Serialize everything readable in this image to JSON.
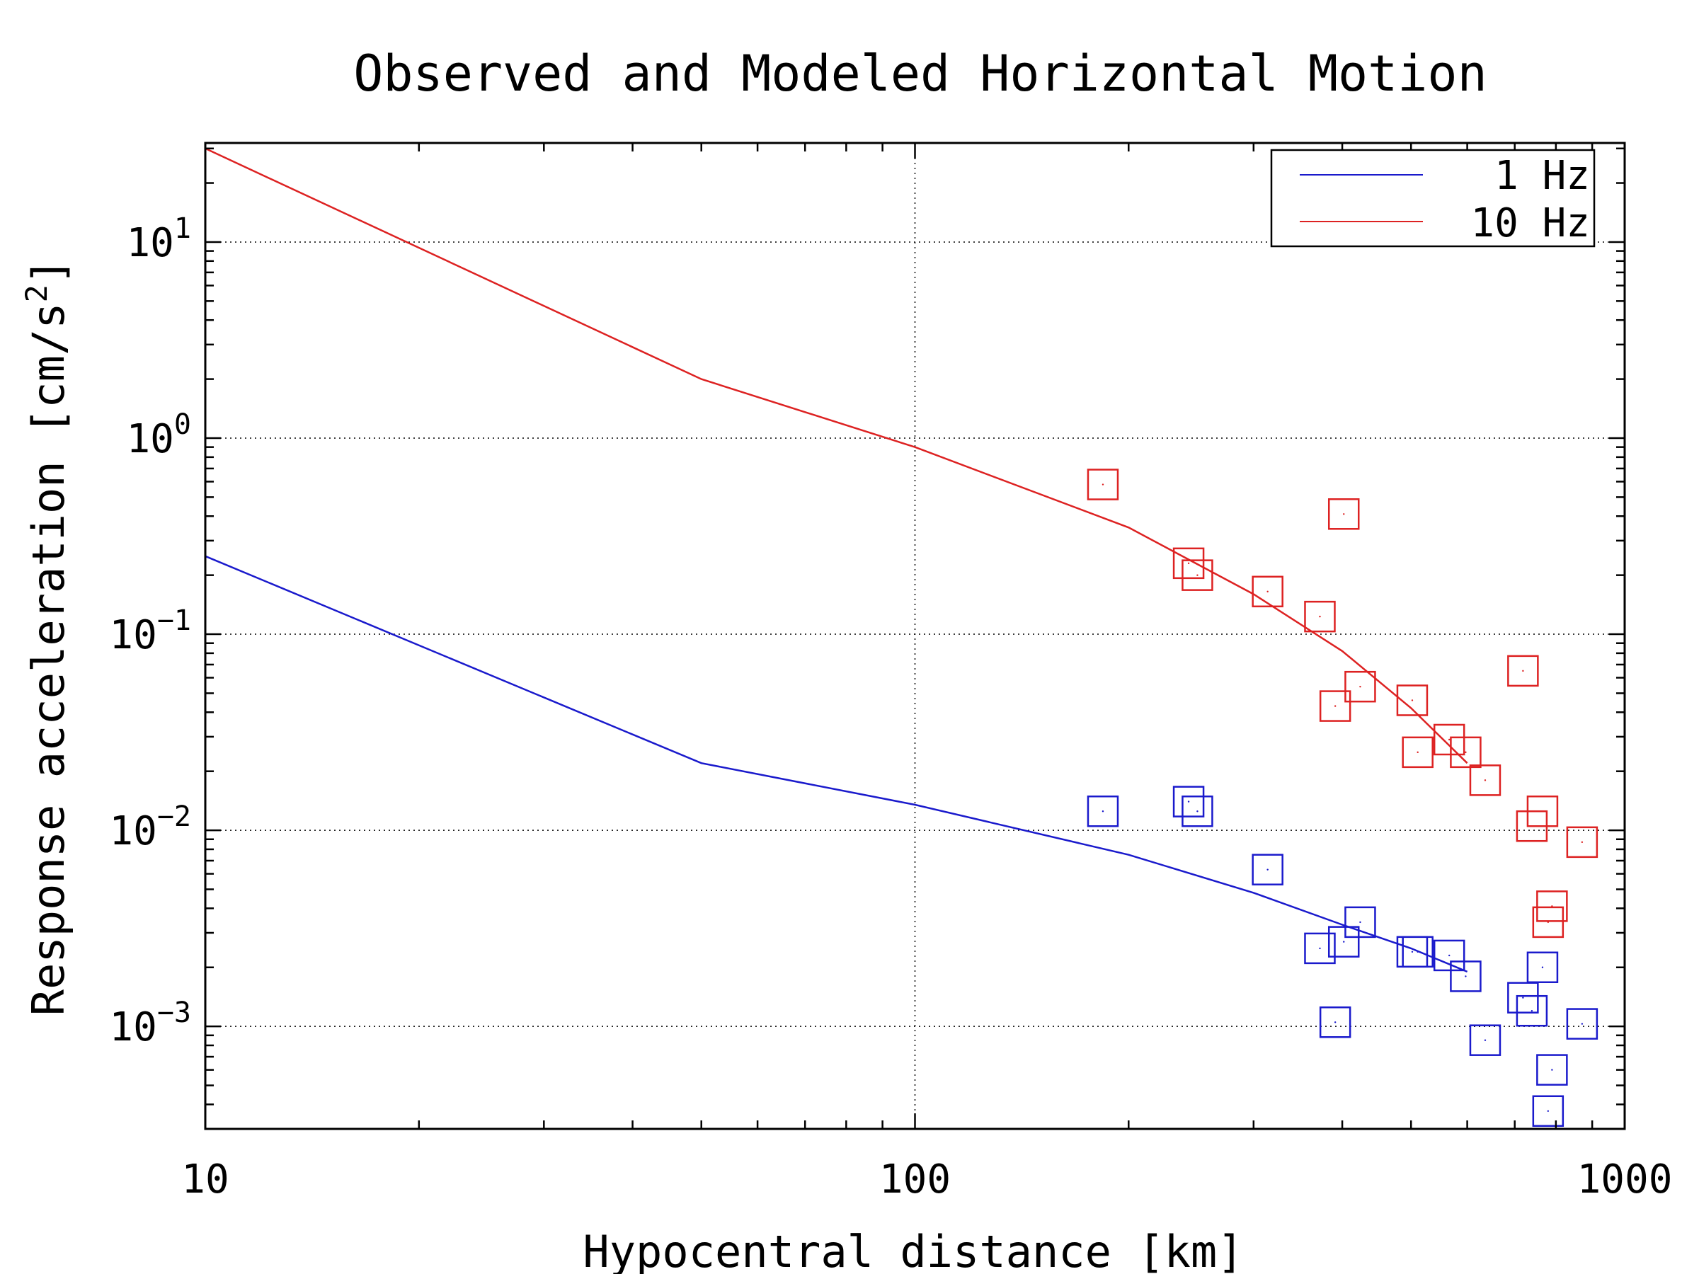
{
  "chart_data": {
    "type": "scatter",
    "title": "Observed and Modeled Horizontal Motion",
    "xlabel": "Hypocentral distance [km]",
    "ylabel": "Response acceleration [cm/s",
    "ylabel_sup": "2",
    "ylabel_close": "]",
    "x_scale": "log",
    "y_scale": "log",
    "xlim": [
      10,
      1000
    ],
    "ylim": [
      0.0003,
      32
    ],
    "grid": true,
    "legend_position": "top-right",
    "x_ticks": [
      {
        "value": 10,
        "label": "10"
      },
      {
        "value": 100,
        "label": "100"
      },
      {
        "value": 1000,
        "label": "1000"
      }
    ],
    "y_ticks": [
      {
        "value": 10,
        "base": "10",
        "exp": "1"
      },
      {
        "value": 1,
        "base": "10",
        "exp": "0"
      },
      {
        "value": 0.1,
        "base": "10",
        "exp": "−1"
      },
      {
        "value": 0.01,
        "base": "10",
        "exp": "−2"
      },
      {
        "value": 0.001,
        "base": "10",
        "exp": "−3"
      }
    ],
    "series": [
      {
        "name": "1 Hz",
        "color": "#1a1acc",
        "model_line": [
          [
            10,
            0.25
          ],
          [
            50,
            0.022
          ],
          [
            100,
            0.0135
          ],
          [
            200,
            0.0075
          ],
          [
            300,
            0.0048
          ],
          [
            400,
            0.0033
          ],
          [
            500,
            0.0025
          ],
          [
            600,
            0.0019
          ]
        ],
        "observed": [
          [
            184,
            0.0125
          ],
          [
            243,
            0.014
          ],
          [
            250,
            0.0125
          ],
          [
            314,
            0.0063
          ],
          [
            372,
            0.0025
          ],
          [
            391,
            0.00105
          ],
          [
            402,
            0.0027
          ],
          [
            424,
            0.0034
          ],
          [
            502,
            0.0024
          ],
          [
            511,
            0.0024
          ],
          [
            566,
            0.0023
          ],
          [
            597,
            0.0018
          ],
          [
            636,
            0.00085
          ],
          [
            719,
            0.0014
          ],
          [
            740,
            0.0012
          ],
          [
            766,
            0.002
          ],
          [
            780,
            0.00037
          ],
          [
            790,
            0.0006
          ],
          [
            871,
            0.00103
          ]
        ]
      },
      {
        "name": "10 Hz",
        "color": "#dd2222",
        "model_line": [
          [
            10,
            30
          ],
          [
            50,
            2.0
          ],
          [
            100,
            0.9
          ],
          [
            200,
            0.35
          ],
          [
            300,
            0.16
          ],
          [
            400,
            0.082
          ],
          [
            500,
            0.042
          ],
          [
            600,
            0.022
          ]
        ],
        "observed": [
          [
            184,
            0.58
          ],
          [
            243,
            0.23
          ],
          [
            250,
            0.2
          ],
          [
            314,
            0.165
          ],
          [
            372,
            0.123
          ],
          [
            391,
            0.043
          ],
          [
            402,
            0.41
          ],
          [
            424,
            0.054
          ],
          [
            502,
            0.046
          ],
          [
            511,
            0.025
          ],
          [
            566,
            0.029
          ],
          [
            597,
            0.025
          ],
          [
            636,
            0.018
          ],
          [
            719,
            0.065
          ],
          [
            740,
            0.0105
          ],
          [
            766,
            0.0125
          ],
          [
            780,
            0.0034
          ],
          [
            790,
            0.0041
          ],
          [
            871,
            0.0087
          ]
        ]
      }
    ]
  }
}
